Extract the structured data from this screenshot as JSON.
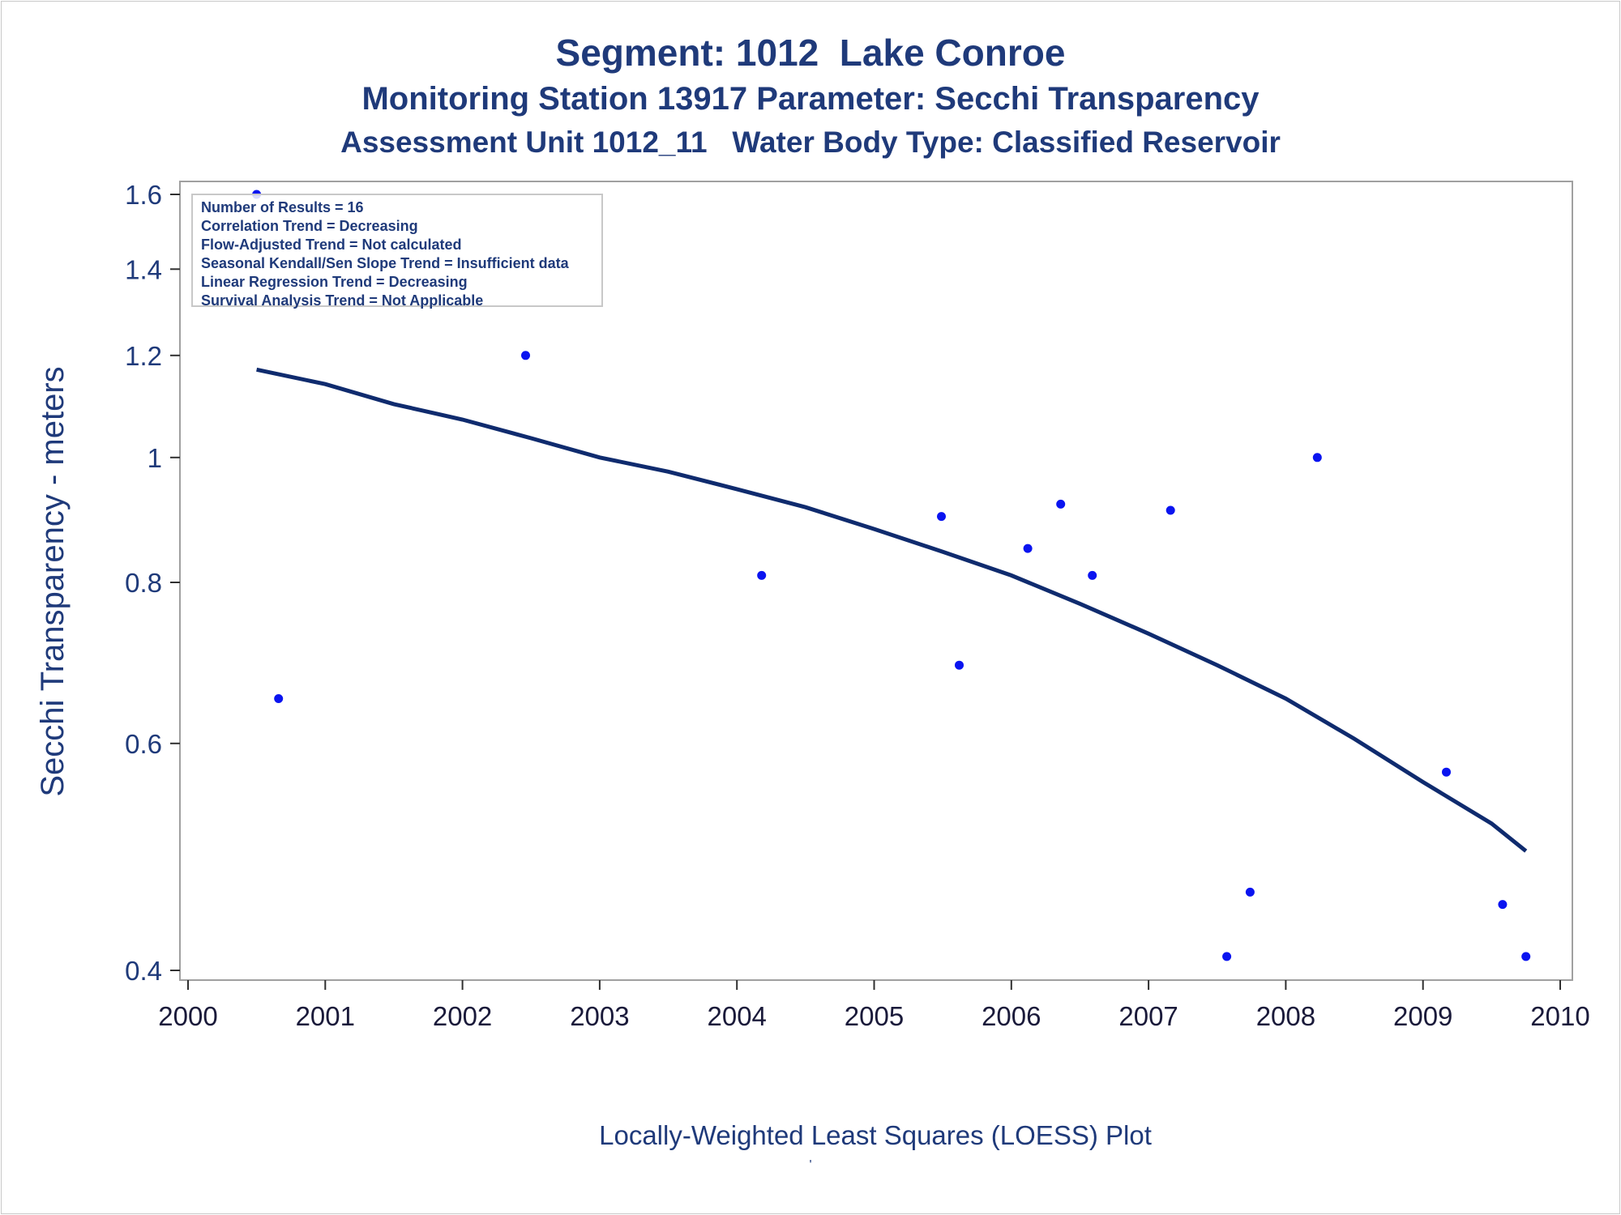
{
  "titles": {
    "line1": "Segment: 1012  Lake Conroe",
    "line2": "Monitoring Station 13917 Parameter: Secchi Transparency",
    "line3": "Assessment Unit 1012_11   Water Body Type: Classified Reservoir"
  },
  "stats": [
    "Number of Results = 16",
    "Correlation Trend = Decreasing",
    "Flow-Adjusted Trend = Not calculated",
    "Seasonal Kendall/Sen Slope Trend = Insufficient data",
    "Linear Regression Trend = Decreasing",
    "Survival Analysis Trend = Not Applicable"
  ],
  "footnote": "'",
  "colors": {
    "title": "#1f3a7a",
    "points": "#0a14f0",
    "curve": "#0f2b6e",
    "frame": "#a0a0a0"
  },
  "chart_data": {
    "type": "scatter",
    "xlabel": "Locally-Weighted Least Squares (LOESS) Plot",
    "ylabel": "Secchi Transparency - meters",
    "xlim": [
      2000,
      2010
    ],
    "ylim": [
      0.4,
      1.6
    ],
    "yscale": "log",
    "xticks": [
      "2000",
      "2001",
      "2002",
      "2003",
      "2004",
      "2005",
      "2006",
      "2007",
      "2008",
      "2009",
      "2010"
    ],
    "yticks": [
      "0.4",
      "0.6",
      "0.8",
      "1",
      "1.2",
      "1.4",
      "1.6"
    ],
    "grid": false,
    "series": [
      {
        "type": "scatter",
        "points": [
          {
            "x": 2000.5,
            "y": 1.6
          },
          {
            "x": 2000.66,
            "y": 0.65
          },
          {
            "x": 2002.46,
            "y": 1.2
          },
          {
            "x": 2004.18,
            "y": 0.81
          },
          {
            "x": 2005.49,
            "y": 0.9
          },
          {
            "x": 2005.62,
            "y": 0.69
          },
          {
            "x": 2006.12,
            "y": 0.85
          },
          {
            "x": 2006.36,
            "y": 0.92
          },
          {
            "x": 2006.59,
            "y": 0.81
          },
          {
            "x": 2007.16,
            "y": 0.91
          },
          {
            "x": 2007.57,
            "y": 0.41
          },
          {
            "x": 2007.74,
            "y": 0.46
          },
          {
            "x": 2008.23,
            "y": 1.0
          },
          {
            "x": 2009.17,
            "y": 0.57
          },
          {
            "x": 2009.58,
            "y": 0.45
          },
          {
            "x": 2009.75,
            "y": 0.41
          }
        ]
      },
      {
        "type": "line",
        "points": [
          {
            "x": 2000.5,
            "y": 1.17
          },
          {
            "x": 2001.0,
            "y": 1.14
          },
          {
            "x": 2001.5,
            "y": 1.1
          },
          {
            "x": 2002.0,
            "y": 1.07
          },
          {
            "x": 2002.5,
            "y": 1.035
          },
          {
            "x": 2003.0,
            "y": 1.0
          },
          {
            "x": 2003.5,
            "y": 0.975
          },
          {
            "x": 2004.0,
            "y": 0.945
          },
          {
            "x": 2004.5,
            "y": 0.915
          },
          {
            "x": 2005.0,
            "y": 0.88
          },
          {
            "x": 2005.5,
            "y": 0.845
          },
          {
            "x": 2006.0,
            "y": 0.81
          },
          {
            "x": 2006.5,
            "y": 0.77
          },
          {
            "x": 2007.0,
            "y": 0.73
          },
          {
            "x": 2007.5,
            "y": 0.69
          },
          {
            "x": 2008.0,
            "y": 0.65
          },
          {
            "x": 2008.5,
            "y": 0.605
          },
          {
            "x": 2009.0,
            "y": 0.56
          },
          {
            "x": 2009.5,
            "y": 0.52
          },
          {
            "x": 2009.75,
            "y": 0.495
          }
        ]
      }
    ]
  }
}
